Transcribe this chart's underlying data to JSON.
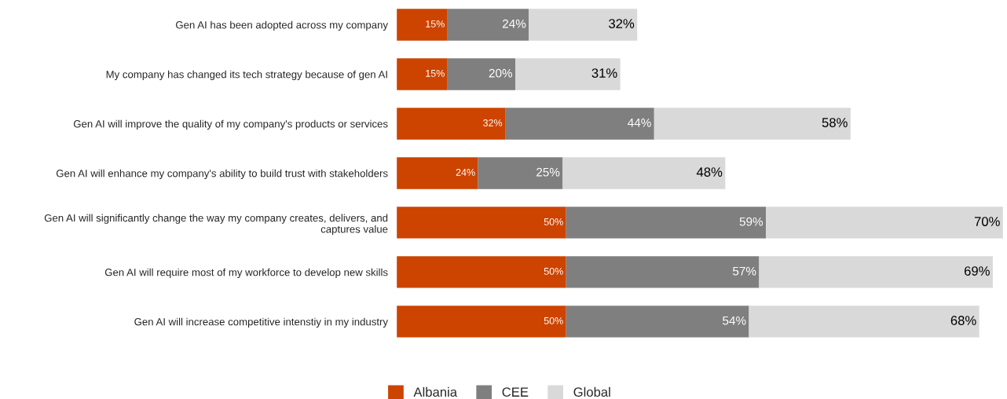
{
  "chart_data": {
    "type": "bar",
    "orientation": "horizontal",
    "stacked": true,
    "legend": "bottom",
    "grid": false,
    "categories": [
      "Gen AI has been adopted across my company",
      "My company has changed its tech strategy because of gen AI",
      "Gen AI will improve the quality of my company's products or services",
      "Gen AI will enhance my company's ability to build trust with stakeholders",
      "Gen AI will significantly change the way my company creates, delivers, and\ncaptures value",
      "Gen AI will require most of my workforce to develop new skills",
      "Gen AI will increase competitive intenstiy in my industry"
    ],
    "series": [
      {
        "name": "Albania",
        "color": "#cc4400",
        "values": [
          15,
          15,
          32,
          24,
          50,
          50,
          50
        ],
        "value_labels": [
          "15%",
          "15%",
          "32%",
          "24%",
          "50%",
          "50%",
          "50%"
        ]
      },
      {
        "name": "CEE",
        "color": "#7f7f7f",
        "values": [
          24,
          20,
          44,
          25,
          59,
          57,
          54
        ],
        "value_labels": [
          "24%",
          "20%",
          "44%",
          "25%",
          "59%",
          "57%",
          "54%"
        ]
      },
      {
        "name": "Global",
        "color": "#d9d9d9",
        "values": [
          32,
          31,
          58,
          48,
          70,
          69,
          68
        ],
        "value_labels": [
          "32%",
          "31%",
          "58%",
          "48%",
          "70%",
          "69%",
          "68%"
        ]
      }
    ]
  }
}
